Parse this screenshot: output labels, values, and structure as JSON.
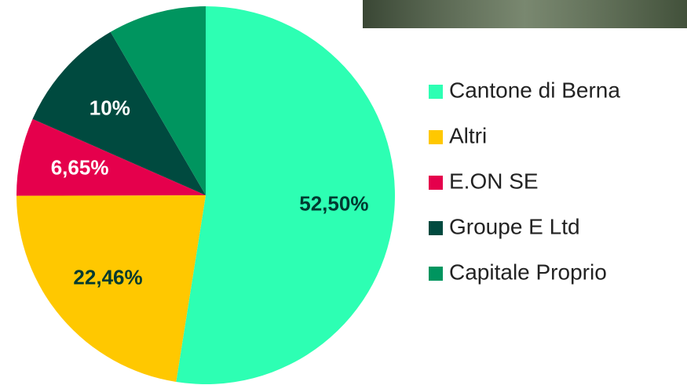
{
  "chart_data": {
    "type": "pie",
    "categories": [
      "Cantone di Berna",
      "Altri",
      "E.ON SE",
      "Groupe E Ltd",
      "Capitale Proprio"
    ],
    "values": [
      52.5,
      22.46,
      6.65,
      10,
      8.39
    ],
    "value_labels": [
      "52,50%",
      "22,46%",
      "6,65%",
      "10%",
      null
    ],
    "colors": [
      "#2dffb3",
      "#ffc800",
      "#e5004c",
      "#004a3f",
      "#00955f"
    ],
    "legend": "right"
  }
}
